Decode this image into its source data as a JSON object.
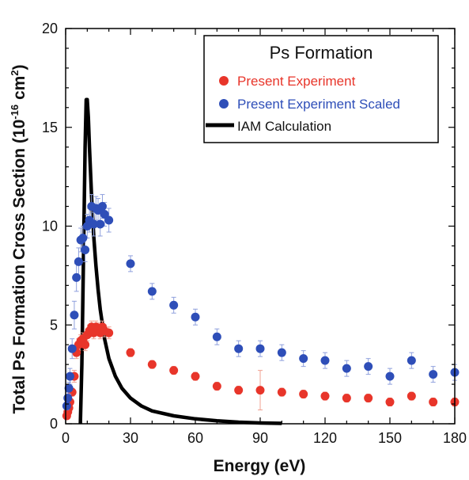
{
  "chart_data": {
    "type": "scatter",
    "title": "",
    "xlabel": "Energy (eV)",
    "ylabel_main": "Total Ps Formation Cross Section (10",
    "ylabel_sup": "-16",
    "ylabel_end": " cm",
    "ylabel_sup2": "2",
    "ylabel_close": ")",
    "xlim": [
      0,
      180
    ],
    "ylim": [
      0,
      20
    ],
    "x_ticks": [
      0,
      30,
      60,
      90,
      120,
      150,
      180
    ],
    "y_ticks": [
      0,
      5,
      10,
      15,
      20
    ],
    "grid": false,
    "legend": {
      "title": "Ps Formation",
      "placement": "top-right",
      "entries": [
        {
          "label": "Present Experiment",
          "color": "#e8352a",
          "marker": "circle"
        },
        {
          "label": "Present Experiment Scaled",
          "color": "#2e4eb8",
          "marker": "circle"
        },
        {
          "label": "IAM Calculation",
          "color": "#000000",
          "marker": "line"
        }
      ]
    },
    "series": [
      {
        "name": "Present Experiment",
        "color": "#e8352a",
        "points": [
          {
            "x": 0.5,
            "y": 0.4,
            "err": 0.1
          },
          {
            "x": 1,
            "y": 0.6,
            "err": 0.15
          },
          {
            "x": 1.5,
            "y": 0.8,
            "err": 0.2
          },
          {
            "x": 2,
            "y": 1.1,
            "err": 0.2
          },
          {
            "x": 3,
            "y": 1.6,
            "err": 0.2
          },
          {
            "x": 4,
            "y": 2.4,
            "err": 0.3
          },
          {
            "x": 5,
            "y": 3.6,
            "err": 0.3
          },
          {
            "x": 6,
            "y": 4.0,
            "err": 0.3
          },
          {
            "x": 7,
            "y": 4.2,
            "err": 0.3
          },
          {
            "x": 8,
            "y": 4.3,
            "err": 0.3
          },
          {
            "x": 9,
            "y": 4.0,
            "err": 0.3
          },
          {
            "x": 10,
            "y": 4.5,
            "err": 0.3
          },
          {
            "x": 11,
            "y": 4.7,
            "err": 0.3
          },
          {
            "x": 12,
            "y": 4.9,
            "err": 0.3
          },
          {
            "x": 13,
            "y": 4.6,
            "err": 0.3
          },
          {
            "x": 14,
            "y": 4.9,
            "err": 0.3
          },
          {
            "x": 15,
            "y": 4.8,
            "err": 0.3
          },
          {
            "x": 16,
            "y": 4.6,
            "err": 0.3
          },
          {
            "x": 17,
            "y": 4.9,
            "err": 0.3
          },
          {
            "x": 18,
            "y": 4.7,
            "err": 0.3
          },
          {
            "x": 20,
            "y": 4.6,
            "err": 0.3
          },
          {
            "x": 30,
            "y": 3.6,
            "err": 0.2
          },
          {
            "x": 40,
            "y": 3.0,
            "err": 0.2
          },
          {
            "x": 50,
            "y": 2.7,
            "err": 0.2
          },
          {
            "x": 60,
            "y": 2.4,
            "err": 0.2
          },
          {
            "x": 70,
            "y": 1.9,
            "err": 0.2
          },
          {
            "x": 80,
            "y": 1.7,
            "err": 0.2
          },
          {
            "x": 90,
            "y": 1.7,
            "err": 1.0
          },
          {
            "x": 100,
            "y": 1.6,
            "err": 0.2
          },
          {
            "x": 110,
            "y": 1.5,
            "err": 0.2
          },
          {
            "x": 120,
            "y": 1.4,
            "err": 0.2
          },
          {
            "x": 130,
            "y": 1.3,
            "err": 0.2
          },
          {
            "x": 140,
            "y": 1.3,
            "err": 0.2
          },
          {
            "x": 150,
            "y": 1.1,
            "err": 0.2
          },
          {
            "x": 160,
            "y": 1.4,
            "err": 0.2
          },
          {
            "x": 170,
            "y": 1.1,
            "err": 0.2
          },
          {
            "x": 180,
            "y": 1.1,
            "err": 0.2
          }
        ]
      },
      {
        "name": "Present Experiment Scaled",
        "color": "#2e4eb8",
        "points": [
          {
            "x": 0.5,
            "y": 0.9,
            "err": 0.2
          },
          {
            "x": 1,
            "y": 1.3,
            "err": 0.3
          },
          {
            "x": 1.5,
            "y": 1.8,
            "err": 0.3
          },
          {
            "x": 2,
            "y": 2.4,
            "err": 0.4
          },
          {
            "x": 3,
            "y": 3.8,
            "err": 0.5
          },
          {
            "x": 4,
            "y": 5.5,
            "err": 0.7
          },
          {
            "x": 5,
            "y": 7.4,
            "err": 0.7
          },
          {
            "x": 6,
            "y": 8.2,
            "err": 0.7
          },
          {
            "x": 7,
            "y": 9.3,
            "err": 0.6
          },
          {
            "x": 8,
            "y": 9.4,
            "err": 0.6
          },
          {
            "x": 9,
            "y": 8.8,
            "err": 0.6
          },
          {
            "x": 10,
            "y": 10.0,
            "err": 0.6
          },
          {
            "x": 11,
            "y": 10.3,
            "err": 0.6
          },
          {
            "x": 12,
            "y": 11.0,
            "err": 0.6
          },
          {
            "x": 13,
            "y": 10.1,
            "err": 0.6
          },
          {
            "x": 14,
            "y": 10.9,
            "err": 0.6
          },
          {
            "x": 15,
            "y": 10.8,
            "err": 0.6
          },
          {
            "x": 16,
            "y": 10.1,
            "err": 0.6
          },
          {
            "x": 17,
            "y": 11.0,
            "err": 0.6
          },
          {
            "x": 18,
            "y": 10.6,
            "err": 0.6
          },
          {
            "x": 20,
            "y": 10.3,
            "err": 0.6
          },
          {
            "x": 30,
            "y": 8.1,
            "err": 0.4
          },
          {
            "x": 40,
            "y": 6.7,
            "err": 0.4
          },
          {
            "x": 50,
            "y": 6.0,
            "err": 0.4
          },
          {
            "x": 60,
            "y": 5.4,
            "err": 0.4
          },
          {
            "x": 70,
            "y": 4.4,
            "err": 0.4
          },
          {
            "x": 80,
            "y": 3.8,
            "err": 0.4
          },
          {
            "x": 90,
            "y": 3.8,
            "err": 0.4
          },
          {
            "x": 100,
            "y": 3.6,
            "err": 0.4
          },
          {
            "x": 110,
            "y": 3.3,
            "err": 0.4
          },
          {
            "x": 120,
            "y": 3.2,
            "err": 0.4
          },
          {
            "x": 130,
            "y": 2.8,
            "err": 0.4
          },
          {
            "x": 140,
            "y": 2.9,
            "err": 0.4
          },
          {
            "x": 150,
            "y": 2.4,
            "err": 0.4
          },
          {
            "x": 160,
            "y": 3.2,
            "err": 0.4
          },
          {
            "x": 170,
            "y": 2.5,
            "err": 0.4
          },
          {
            "x": 180,
            "y": 2.6,
            "err": 0.4
          }
        ]
      },
      {
        "name": "IAM Calculation",
        "color": "#000000",
        "line": [
          [
            6.8,
            0
          ],
          [
            7.5,
            3.0
          ],
          [
            8.2,
            8.0
          ],
          [
            9.0,
            14.0
          ],
          [
            9.5,
            16.4
          ],
          [
            10,
            16.4
          ],
          [
            10.5,
            15.5
          ],
          [
            11,
            14.0
          ],
          [
            12,
            11.5
          ],
          [
            13,
            9.5
          ],
          [
            14,
            8.0
          ],
          [
            15,
            6.8
          ],
          [
            16,
            5.8
          ],
          [
            18,
            4.3
          ],
          [
            20,
            3.3
          ],
          [
            23,
            2.4
          ],
          [
            26,
            1.8
          ],
          [
            30,
            1.3
          ],
          [
            35,
            0.9
          ],
          [
            40,
            0.65
          ],
          [
            50,
            0.4
          ],
          [
            60,
            0.25
          ],
          [
            70,
            0.15
          ],
          [
            80,
            0.08
          ],
          [
            90,
            0.04
          ],
          [
            100,
            0.02
          ]
        ]
      }
    ]
  }
}
